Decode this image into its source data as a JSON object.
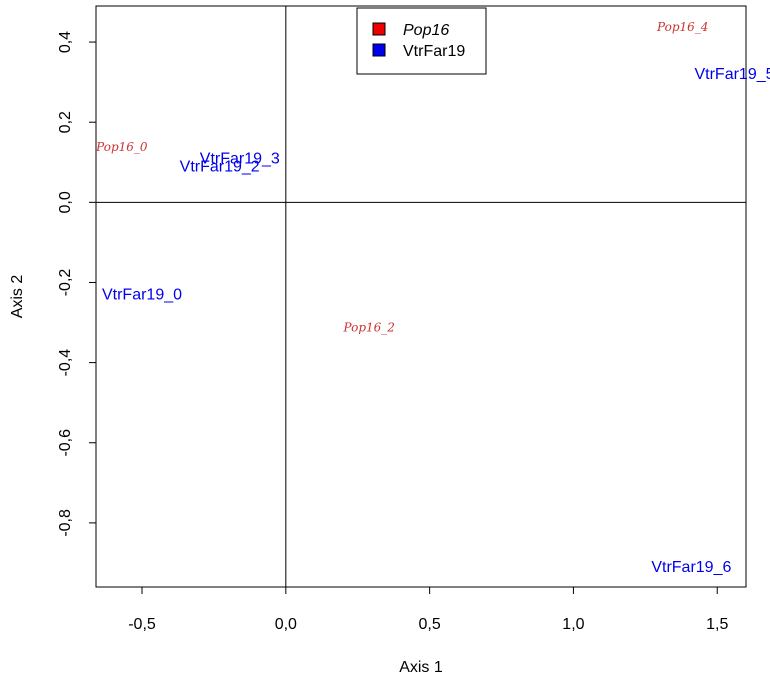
{
  "chart_data": {
    "type": "scatter",
    "xlabel": "Axis 1",
    "ylabel": "Axis 2",
    "xlim": [
      -0.66,
      1.6
    ],
    "ylim": [
      -0.96,
      0.49
    ],
    "x_ticks": [
      -0.5,
      0.0,
      0.5,
      1.0,
      1.5
    ],
    "x_tick_labels": [
      "-0,5",
      "0,0",
      "0,5",
      "1,0",
      "1,5"
    ],
    "y_ticks": [
      -0.8,
      -0.6,
      -0.4,
      -0.2,
      0.0,
      0.2,
      0.4
    ],
    "y_tick_labels": [
      "-0,8",
      "-0,6",
      "-0,4",
      "-0,2",
      "0,0",
      "0,2",
      "0,4"
    ],
    "reference_lines": {
      "x": 0,
      "y": 0
    },
    "grid": false,
    "legend_position": "top-center",
    "series": [
      {
        "name": "Pop16",
        "color": "#cc3333",
        "italic": true,
        "points": [
          {
            "label": "Pop16_0",
            "x": -0.57,
            "y": 0.14
          },
          {
            "label": "Pop16_2",
            "x": 0.29,
            "y": -0.31
          },
          {
            "label": "Pop16_4",
            "x": 1.38,
            "y": 0.44
          }
        ]
      },
      {
        "name": "VtrFar19",
        "color": "#0000ee",
        "italic": false,
        "points": [
          {
            "label": "VtrFar19_0",
            "x": -0.5,
            "y": -0.23
          },
          {
            "label": "VtrFar19_2",
            "x": -0.23,
            "y": 0.09
          },
          {
            "label": "VtrFar19_3",
            "x": -0.16,
            "y": 0.11
          },
          {
            "label": "VtrFar19_5",
            "x": 1.56,
            "y": 0.32
          },
          {
            "label": "VtrFar19_6",
            "x": 1.41,
            "y": -0.91
          }
        ]
      }
    ],
    "legend": [
      {
        "label": "Pop16",
        "color": "#ee0000",
        "italic": true
      },
      {
        "label": "VtrFar19",
        "color": "#0000ee",
        "italic": false
      }
    ]
  }
}
